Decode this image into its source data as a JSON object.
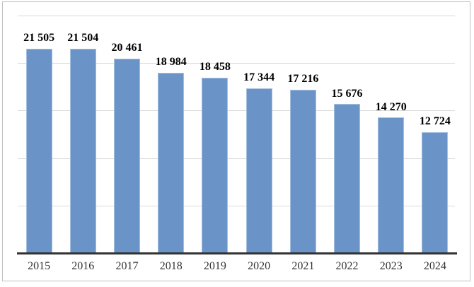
{
  "chart_data": {
    "type": "bar",
    "title": "",
    "xlabel": "",
    "ylabel": "",
    "categories": [
      "2015",
      "2016",
      "2017",
      "2018",
      "2019",
      "2020",
      "2021",
      "2022",
      "2023",
      "2024"
    ],
    "values": [
      21505,
      21504,
      20461,
      18984,
      18458,
      17344,
      17216,
      15676,
      14270,
      12724
    ],
    "value_labels": [
      "21 505",
      "21 504",
      "20 461",
      "18 984",
      "18 458",
      "17 344",
      "17 216",
      "15 676",
      "14 270",
      "12 724"
    ],
    "ylim": [
      0,
      25000
    ],
    "ytick_step": 5000,
    "y_tick_labels_visible": false,
    "grid": true,
    "legend": "none",
    "bar_color": "#6A94C8",
    "gridline_color": "#D9D9D9",
    "axis_line_color": "#333333",
    "frame_border_color": "#BFBFBF",
    "background": "#FFFFFF"
  }
}
